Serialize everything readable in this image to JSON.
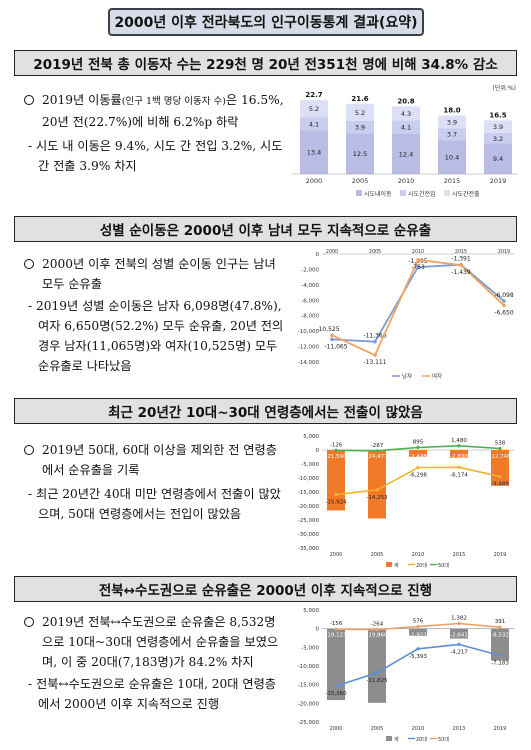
{
  "title": "2000년 이후 전라북도의 인구이동통계 결과(요약)",
  "sections": [
    {
      "heading": "2019년 전북 총 이동자 수는 229천 명 20년 전351천 명에 비해 34.8% 감소",
      "bullet_a": "2019년 이동률",
      "bullet_note": "(인구 1백 명당 이동자 수)",
      "bullet_b": "은 16.5%, 20년 전(22.7%)에 비해 6.2%p 하락",
      "sub": "- 시도 내 이동은 9.4%, 시도 간 전입 3.2%, 시도 간 전출 3.9% 차지"
    },
    {
      "heading": "성별 순이동은 2000년 이후 남녀 모두 지속적으로 순유출",
      "bullet": "2000년 이후 전북의 성별 순이동 인구는 남녀 모두 순유출",
      "sub": "- 2019년 성별 순이동은 남자 6,098명(47.8%), 여자 6,650명(52.2%) 모두 순유출, 20년 전의 경우 남자(11,065명)와 여자(10,525명) 모두 순유출로 나타났음"
    },
    {
      "heading": "최근 20년간 10대~30대 연령층에서는 전출이 많았음",
      "bullet": "2019년 50대, 60대 이상을 제외한 전 연령층에서 순유출을 기록",
      "sub": "- 최근 20년간 40대 미만 연령층에서 전출이 많았으며, 50대 연령층에서는 전입이 많았음"
    },
    {
      "heading": "전북↔수도권으로 순유출은 2000년 이후 지속적으로 진행",
      "bullet": "2019년 전북↔수도권으로 순유출은 8,532명으로 10대~30대 연령층에서 순유출을 보였으며, 이 중 20대(7,183명)가 84.2% 차지",
      "sub": "- 전북↔수도권으로 순유출은 10대, 20대 연령층에서 2000년 이후 지속적으로 진행"
    }
  ],
  "chart_data": [
    {
      "type": "bar",
      "stacked": true,
      "unit": "(단위:%)",
      "categories": [
        "2000",
        "2005",
        "2010",
        "2015",
        "2019"
      ],
      "series": [
        {
          "name": "시도내이동",
          "values": [
            13.4,
            12.5,
            12.4,
            10.4,
            9.4
          ],
          "color": "#b9bde6"
        },
        {
          "name": "시도간전입",
          "values": [
            4.1,
            3.9,
            4.1,
            3.7,
            3.2
          ],
          "color": "#c9cdee"
        },
        {
          "name": "시도간전출",
          "values": [
            5.2,
            5.2,
            4.3,
            3.9,
            3.9
          ],
          "color": "#dcdff5"
        }
      ],
      "totals": [
        22.7,
        21.6,
        20.8,
        18.0,
        16.5
      ],
      "legend": "bottom"
    },
    {
      "type": "line",
      "categories": [
        "2000",
        "2005",
        "2010",
        "2015",
        "2019"
      ],
      "series": [
        {
          "name": "남자",
          "values": [
            -11065,
            -11366,
            -1695,
            -1391,
            -6098
          ],
          "color": "#7e9ad6"
        },
        {
          "name": "여자",
          "values": [
            -10525,
            -13111,
            -753,
            -1439,
            -6650
          ],
          "color": "#f0a35e"
        }
      ],
      "ylim": [
        -14000,
        0
      ],
      "yticks": [
        "0",
        "-2,000",
        "-4,000",
        "-6,000",
        "-8,000",
        "-10,000",
        "-12,000",
        "-14,000"
      ],
      "labels": {
        "male": [
          "-11,065",
          "-11,366",
          "-1,695",
          "-1,391",
          "-6,098"
        ],
        "female": [
          "-10,525",
          "-13,111",
          "-753",
          "-1,439",
          "-6,650"
        ]
      },
      "legend": "bottom"
    },
    {
      "type": "bar",
      "categories": [
        "2000",
        "2005",
        "2010",
        "2015",
        "2019"
      ],
      "ylim": [
        -35000,
        5000
      ],
      "yticks": [
        "5,000",
        "0",
        "-5,000",
        "-10,000",
        "-15,000",
        "-20,000",
        "-25,000",
        "-30,000",
        "-35,000"
      ],
      "series": [
        {
          "name": "계",
          "values": [
            -21590,
            -24477,
            -2448,
            -2830,
            -12748
          ],
          "labels": [
            "-21,590",
            "-24,477",
            "-2,448",
            "-2,830",
            "-12,748"
          ],
          "color": "#f07a28"
        },
        {
          "name": "20대",
          "values": [
            -15924,
            -14253,
            -6298,
            -6174,
            -9489
          ],
          "labels": [
            "-15,924",
            "-14,253",
            "-6,298",
            "-6,174",
            "-9,489"
          ],
          "color": "#f0b32a"
        },
        {
          "name": "50대",
          "values": [
            -126,
            -287,
            895,
            1480,
            538
          ],
          "labels": [
            "-126",
            "-287",
            "895",
            "1,480",
            "538"
          ],
          "color": "#4caf50"
        }
      ],
      "legend": "bottom"
    },
    {
      "type": "bar",
      "categories": [
        "2000",
        "2005",
        "2010",
        "2013",
        "2019"
      ],
      "ylim": [
        -25000,
        5000
      ],
      "yticks": [
        "5,000",
        "0",
        "-5,000",
        "-10,000",
        "-15,000",
        "-20,000",
        "-25,000"
      ],
      "series": [
        {
          "name": "계",
          "values": [
            -19123,
            -19860,
            -1922,
            -2641,
            -8532
          ],
          "labels": [
            "-19,123",
            "-19,860",
            "-1,922",
            "-2,641",
            "-8,532"
          ],
          "color": "#8d8d8d"
        },
        {
          "name": "20대",
          "values": [
            -15360,
            -11825,
            -5393,
            -4217,
            -7183
          ],
          "labels": [
            "-15,360",
            "-11,825",
            "-5,393",
            "-4,217",
            "-7,183"
          ],
          "color": "#5b8fd6"
        },
        {
          "name": "50대",
          "values": [
            -156,
            -264,
            576,
            1382,
            391
          ],
          "labels": [
            "-156",
            "-264",
            "576",
            "1,382",
            "391"
          ],
          "color": "#e9a06a"
        }
      ],
      "legend": "bottom"
    }
  ]
}
